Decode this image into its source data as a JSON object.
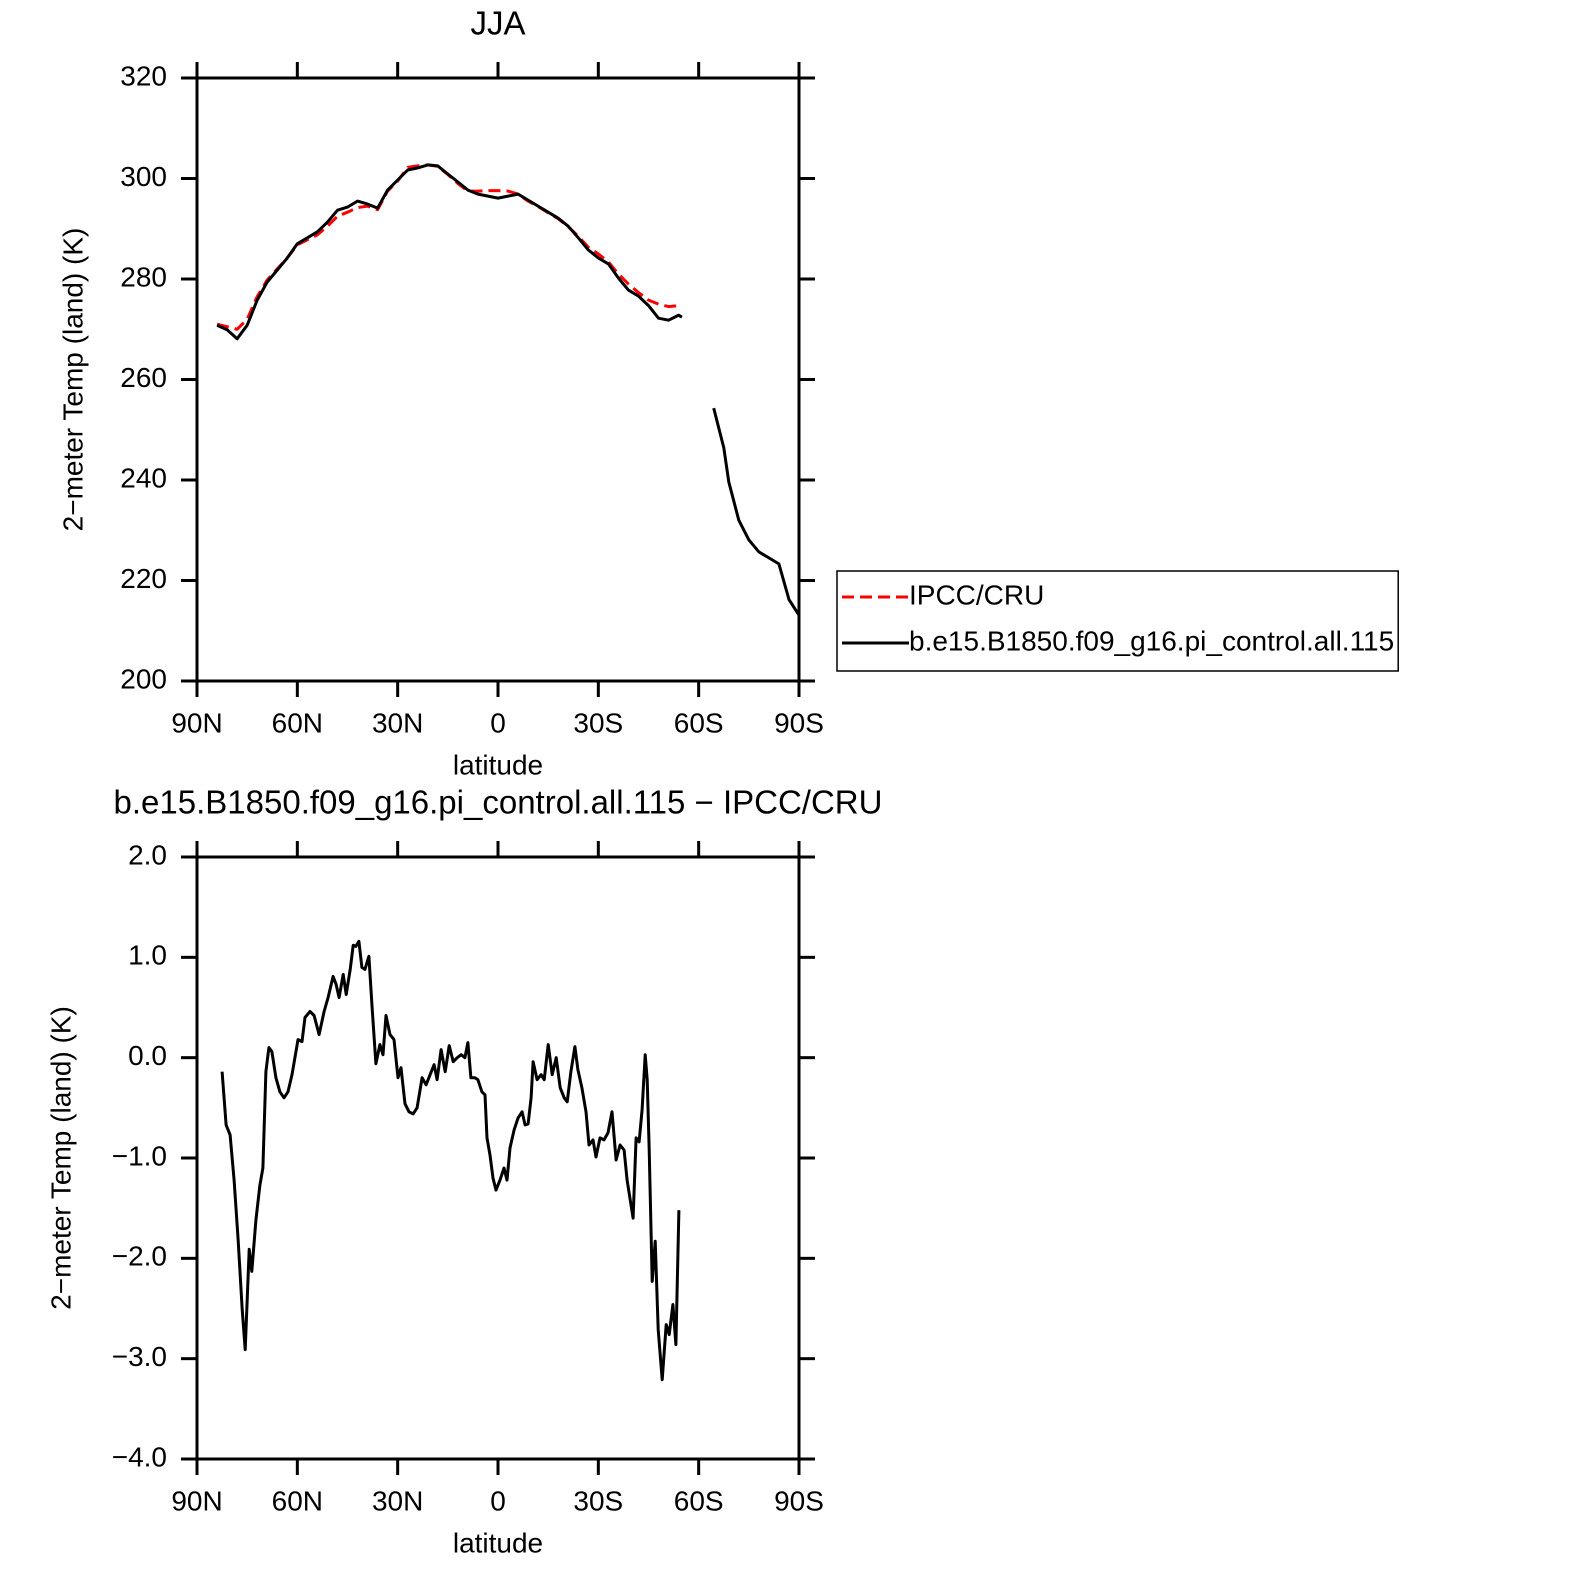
{
  "chart_data": [
    {
      "type": "line",
      "title": "JJA",
      "x_label": "latitude",
      "y_label": "2−meter Temp (land) (K)",
      "x": [
        84,
        81,
        78,
        75,
        72,
        69,
        66,
        63,
        60,
        57,
        54,
        51,
        48,
        45,
        42,
        39,
        36,
        33,
        30,
        27,
        24,
        21,
        18,
        15,
        12,
        9,
        6,
        3,
        0,
        -3,
        -6,
        -9,
        -12,
        -15,
        -18,
        -21,
        -24,
        -27,
        -30,
        -33,
        -36,
        -39,
        -42,
        -45,
        -48,
        -51,
        -54,
        -55,
        -60,
        -64.5,
        -67.5,
        -69,
        -72,
        -75,
        -78,
        -81,
        -84,
        -87,
        -90
      ],
      "series": [
        {
          "name": "IPCC/CRU",
          "color": "#ff0000",
          "dash": "dashed",
          "values": [
            271.0,
            270.5,
            270.0,
            272.0,
            276.5,
            279.8,
            282.0,
            284.2,
            286.8,
            287.8,
            288.8,
            290.5,
            292.5,
            293.3,
            294.2,
            294.5,
            293.8,
            297.5,
            299.5,
            302.2,
            302.5,
            302.7,
            302.4,
            300.8,
            299.0,
            297.5,
            297.5,
            297.6,
            297.6,
            297.5,
            296.9,
            295.5,
            294.4,
            293.2,
            292.0,
            290.4,
            288.5,
            286.3,
            285.0,
            283.4,
            281.0,
            279.0,
            277.3,
            275.8,
            275.0,
            274.5,
            274.7,
            274.8,
            null,
            null,
            null,
            null,
            null,
            null,
            null,
            null,
            null,
            null,
            null
          ]
        },
        {
          "name": "b.e15.B1850.f09_g16.pi_control.all.115",
          "color": "#000000",
          "dash": "solid",
          "values": [
            270.8,
            269.9,
            268.1,
            270.8,
            275.8,
            279.4,
            281.8,
            284.2,
            287.0,
            288.2,
            289.4,
            291.3,
            293.7,
            294.3,
            295.5,
            294.9,
            294.1,
            297.7,
            299.7,
            301.7,
            302.1,
            302.7,
            302.5,
            300.9,
            299.3,
            297.7,
            296.9,
            296.5,
            296.1,
            296.5,
            296.9,
            295.7,
            294.5,
            293.3,
            292.1,
            290.5,
            288.2,
            285.8,
            284.2,
            283.0,
            280.2,
            277.8,
            276.6,
            274.7,
            272.2,
            271.8,
            272.8,
            272.4,
            null,
            254.3,
            246.4,
            239.6,
            232.0,
            228.1,
            225.7,
            224.5,
            223.3,
            216.2,
            213.1
          ]
        }
      ],
      "xlim": [
        90,
        -90
      ],
      "xticks": [
        {
          "value": 90,
          "label": "90N"
        },
        {
          "value": 60,
          "label": "60N"
        },
        {
          "value": 30,
          "label": "30N"
        },
        0,
        {
          "value": -30,
          "label": "30S"
        },
        {
          "value": -60,
          "label": "60S"
        },
        {
          "value": -90,
          "label": "90S"
        }
      ],
      "ylim": [
        200,
        320
      ],
      "yticks": [
        200,
        220,
        240,
        260,
        280,
        300,
        320
      ],
      "legend": "right"
    },
    {
      "type": "line",
      "title": "b.e15.B1850.f09_g16.pi_control.all.115 − IPCC/CRU",
      "x_label": "latitude",
      "y_label": "2−meter Temp (land) (K)",
      "x": [
        82.5,
        81.3,
        80.1,
        78.9,
        77.7,
        76.5,
        75.6,
        74.4,
        73.6,
        72.4,
        71.2,
        70.3,
        69.4,
        68.5,
        67.6,
        66.4,
        65.2,
        64.0,
        62.8,
        61.6,
        59.8,
        58.6,
        57.7,
        56.2,
        55.0,
        53.5,
        52.0,
        50.8,
        49.3,
        48.4,
        47.5,
        46.3,
        45.4,
        44.2,
        43.3,
        42.5,
        41.6,
        40.7,
        39.8,
        38.6,
        37.7,
        36.5,
        35.3,
        34.4,
        33.5,
        32.3,
        31.1,
        29.9,
        29.0,
        27.8,
        26.6,
        25.4,
        24.2,
        22.7,
        21.5,
        20.3,
        19.1,
        18.2,
        17.0,
        15.8,
        14.6,
        13.4,
        12.2,
        11.0,
        9.9,
        9.0,
        8.1,
        6.9,
        6.0,
        4.8,
        3.9,
        3.3,
        2.4,
        1.5,
        0.6,
        -0.6,
        -1.8,
        -2.7,
        -3.6,
        -4.8,
        -6.0,
        -7.2,
        -8.1,
        -9.0,
        -9.9,
        -10.5,
        -11.7,
        -12.9,
        -13.8,
        -15.0,
        -16.2,
        -17.4,
        -18.6,
        -19.8,
        -20.7,
        -21.8,
        -23.0,
        -23.9,
        -25.1,
        -26.3,
        -27.2,
        -28.4,
        -29.3,
        -30.5,
        -31.7,
        -32.9,
        -34.1,
        -35.3,
        -36.5,
        -37.7,
        -38.6,
        -40.4,
        -41.3,
        -42.2,
        -43.1,
        -44.0,
        -44.6,
        -45.2,
        -46.1,
        -47.0,
        -47.9,
        -49.1,
        -50.3,
        -51.2,
        -52.3,
        -53.2,
        -54.1
      ],
      "series": [
        {
          "color": "#000000",
          "dash": "solid",
          "values": [
            -0.14,
            -0.67,
            -0.77,
            -1.22,
            -1.81,
            -2.51,
            -2.91,
            -1.91,
            -2.13,
            -1.62,
            -1.27,
            -1.1,
            -0.14,
            0.1,
            0.06,
            -0.2,
            -0.34,
            -0.4,
            -0.34,
            -0.17,
            0.18,
            0.16,
            0.4,
            0.46,
            0.42,
            0.23,
            0.46,
            0.6,
            0.81,
            0.73,
            0.6,
            0.83,
            0.63,
            0.88,
            1.12,
            1.11,
            1.16,
            0.9,
            0.88,
            1.01,
            0.53,
            -0.06,
            0.13,
            0.03,
            0.42,
            0.23,
            0.18,
            -0.2,
            -0.1,
            -0.46,
            -0.54,
            -0.56,
            -0.5,
            -0.2,
            -0.27,
            -0.17,
            -0.07,
            -0.22,
            0.08,
            -0.14,
            0.12,
            -0.04,
            0.0,
            0.03,
            0.0,
            0.15,
            -0.2,
            -0.2,
            -0.22,
            -0.34,
            -0.37,
            -0.8,
            -0.97,
            -1.2,
            -1.32,
            -1.22,
            -1.1,
            -1.22,
            -0.9,
            -0.72,
            -0.6,
            -0.54,
            -0.67,
            -0.66,
            -0.4,
            -0.04,
            -0.22,
            -0.17,
            -0.22,
            0.13,
            -0.17,
            0.0,
            -0.3,
            -0.4,
            -0.44,
            -0.14,
            0.11,
            -0.12,
            -0.3,
            -0.54,
            -0.87,
            -0.82,
            -0.99,
            -0.8,
            -0.82,
            -0.75,
            -0.54,
            -1.02,
            -0.87,
            -0.92,
            -1.22,
            -1.6,
            -0.8,
            -0.84,
            -0.52,
            0.03,
            -0.22,
            -0.92,
            -2.23,
            -1.83,
            -2.71,
            -3.21,
            -2.66,
            -2.76,
            -2.46,
            -2.86,
            -1.52
          ]
        }
      ],
      "xlim": [
        90,
        -90
      ],
      "xticks": [
        {
          "value": 90,
          "label": "90N"
        },
        {
          "value": 60,
          "label": "60N"
        },
        {
          "value": 30,
          "label": "30N"
        },
        0,
        {
          "value": -30,
          "label": "30S"
        },
        {
          "value": -60,
          "label": "60S"
        },
        {
          "value": -90,
          "label": "90S"
        }
      ],
      "ylim": [
        -4,
        2
      ],
      "yticks": [
        {
          "value": -4,
          "label": "−4.0"
        },
        {
          "value": -3,
          "label": "−3.0"
        },
        {
          "value": -2,
          "label": "−2.0"
        },
        {
          "value": -1,
          "label": "−1.0"
        },
        {
          "value": 0,
          "label": "0.0"
        },
        {
          "value": 1,
          "label": "1.0"
        },
        {
          "value": 2,
          "label": "2.0"
        }
      ]
    }
  ]
}
